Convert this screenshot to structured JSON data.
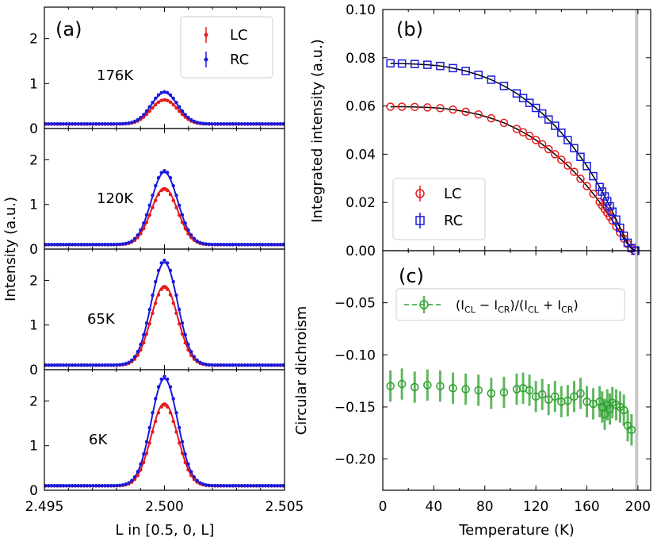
{
  "colors": {
    "lc": "#e41a1c",
    "rc": "#1a1adb",
    "cd": "#2ca02c",
    "vline": "#c8c8c8"
  },
  "labels": {
    "a": "(a)",
    "b": "(b)",
    "c": "(c)",
    "a_ylabel": "Intensity (a.u.)",
    "a_xlabel": "L in [0.5, 0, L]",
    "b_ylabel": "Integrated intensity (a.u.)",
    "c_ylabel": "Circular dichroism",
    "c_xlabel": "Temperature (K)",
    "legend_lc": "LC",
    "legend_rc": "RC",
    "legend_cd": "(I_CL − I_CR)/(I_CL + I_CR)"
  },
  "chart_data": [
    {
      "id": "panel-a",
      "type": "line",
      "title": "(a)",
      "xlabel": "L in [0.5, 0, L]",
      "ylabel": "Intensity (a.u.)",
      "xlim": [
        2.495,
        2.505
      ],
      "xticks": [
        "2.495",
        "2.500",
        "2.505"
      ],
      "ylim": [
        0,
        2.7
      ],
      "yticks": [
        "0",
        "1",
        "2"
      ],
      "legend": [
        "LC",
        "RC"
      ],
      "legend_position": "top-right",
      "center": 2.5,
      "sigma": 0.00055,
      "baseline": 0.1,
      "subplots": [
        {
          "label": "176K",
          "lc_peak": 0.55,
          "rc_peak": 0.7
        },
        {
          "label": "120K",
          "lc_peak": 1.27,
          "rc_peak": 1.62
        },
        {
          "label": "65K",
          "lc_peak": 1.78,
          "rc_peak": 2.3
        },
        {
          "label": "6K",
          "lc_peak": 1.85,
          "rc_peak": 2.4
        }
      ]
    },
    {
      "id": "panel-b",
      "type": "scatter",
      "title": "(b)",
      "xlabel": "",
      "ylabel": "Integrated intensity (a.u.)",
      "xlim": [
        0,
        210
      ],
      "ylim": [
        0,
        0.1
      ],
      "yticks": [
        "0.00",
        "0.02",
        "0.04",
        "0.06",
        "0.08",
        "0.10"
      ],
      "legend_position": "lower-left",
      "series": [
        {
          "name": "LC",
          "x": [
            6,
            15,
            25,
            35,
            45,
            55,
            65,
            75,
            85,
            95,
            105,
            110,
            115,
            120,
            125,
            130,
            135,
            140,
            145,
            150,
            155,
            160,
            165,
            170,
            172,
            174,
            176,
            178,
            180,
            183,
            186,
            189,
            192,
            195,
            198
          ],
          "y": [
            0.0597,
            0.0597,
            0.0596,
            0.0594,
            0.0591,
            0.0585,
            0.0576,
            0.0565,
            0.0549,
            0.053,
            0.0505,
            0.0491,
            0.0476,
            0.0459,
            0.0441,
            0.0421,
            0.04,
            0.0377,
            0.0353,
            0.0327,
            0.0298,
            0.0268,
            0.0236,
            0.0202,
            0.0187,
            0.0172,
            0.0157,
            0.0141,
            0.0125,
            0.01,
            0.0075,
            0.005,
            0.0027,
            0.0008,
            0.0
          ],
          "fit": true
        },
        {
          "name": "RC",
          "x": [
            6,
            15,
            25,
            35,
            45,
            55,
            65,
            75,
            85,
            95,
            105,
            110,
            115,
            120,
            125,
            130,
            135,
            140,
            145,
            150,
            155,
            160,
            165,
            170,
            172,
            174,
            176,
            178,
            180,
            183,
            186,
            189,
            192,
            195,
            198
          ],
          "y": [
            0.0777,
            0.0776,
            0.0774,
            0.0771,
            0.0766,
            0.0757,
            0.0745,
            0.0729,
            0.0709,
            0.0683,
            0.0652,
            0.0633,
            0.0613,
            0.0592,
            0.0569,
            0.0544,
            0.0518,
            0.0489,
            0.0458,
            0.0425,
            0.0389,
            0.0351,
            0.0309,
            0.0264,
            0.0245,
            0.0225,
            0.0205,
            0.0184,
            0.0162,
            0.0129,
            0.0095,
            0.0062,
            0.0033,
            0.0011,
            0.0
          ],
          "fit": true
        }
      ],
      "vline_x": 199
    },
    {
      "id": "panel-c",
      "type": "scatter",
      "title": "(c)",
      "xlabel": "Temperature (K)",
      "ylabel": "Circular dichroism",
      "xlim": [
        0,
        210
      ],
      "xticks": [
        "0",
        "40",
        "80",
        "120",
        "160",
        "200"
      ],
      "ylim": [
        -0.23,
        0.0
      ],
      "yticks": [
        "−0.05",
        "−0.10",
        "−0.15",
        "−0.20"
      ],
      "legend_position": "top-right",
      "series": [
        {
          "name": "(I_CL − I_CR)/(I_CL + I_CR)",
          "x": [
            6,
            15,
            25,
            35,
            45,
            55,
            65,
            75,
            85,
            95,
            105,
            110,
            115,
            120,
            125,
            130,
            135,
            140,
            145,
            150,
            155,
            160,
            165,
            170,
            172,
            174,
            176,
            178,
            180,
            183,
            186,
            189,
            192,
            195
          ],
          "y": [
            -0.13,
            -0.128,
            -0.131,
            -0.129,
            -0.13,
            -0.132,
            -0.133,
            -0.134,
            -0.137,
            -0.136,
            -0.133,
            -0.132,
            -0.134,
            -0.14,
            -0.138,
            -0.143,
            -0.14,
            -0.145,
            -0.144,
            -0.14,
            -0.137,
            -0.145,
            -0.147,
            -0.145,
            -0.15,
            -0.157,
            -0.148,
            -0.152,
            -0.146,
            -0.148,
            -0.15,
            -0.153,
            -0.168,
            -0.172
          ],
          "yerr": 0.015
        }
      ],
      "vline_x": 199
    }
  ]
}
